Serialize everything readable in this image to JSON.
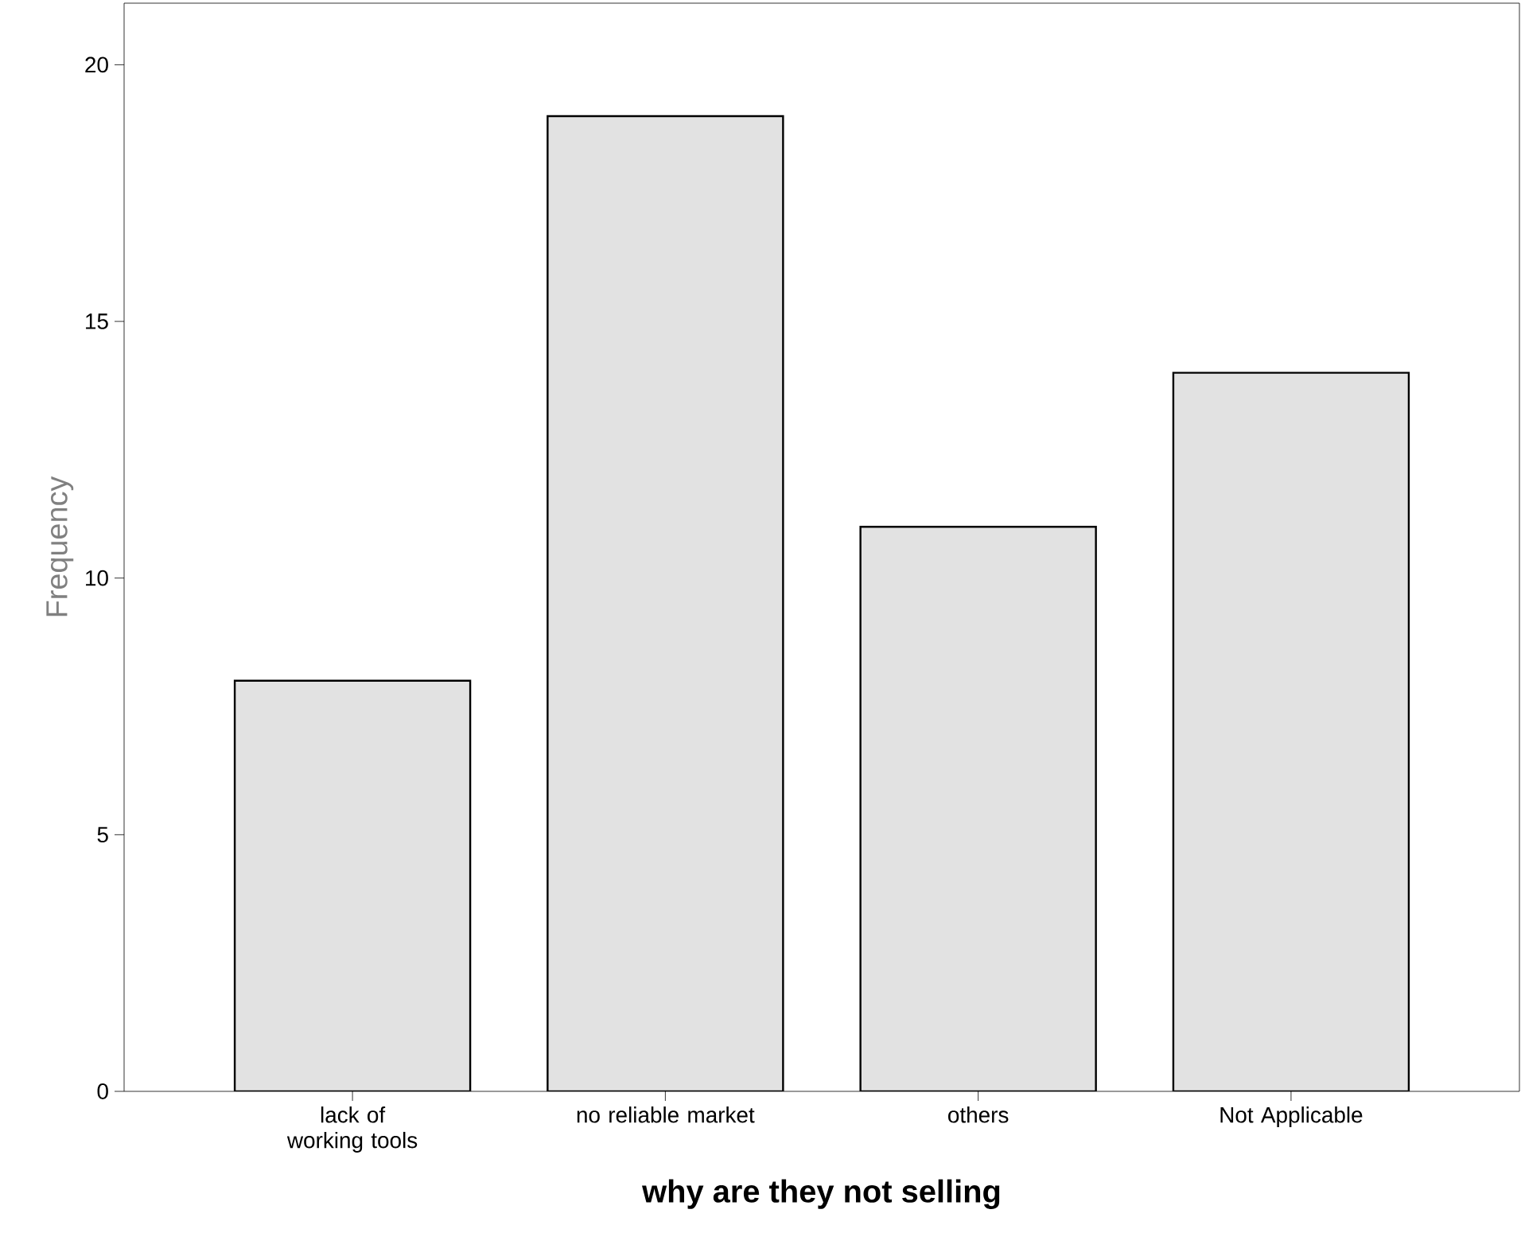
{
  "chart_data": {
    "type": "bar",
    "xlabel": "why are they not selling",
    "ylabel": "Frequency",
    "categories": [
      "lack of working tools",
      "no reliable market",
      "others",
      "Not Applicable"
    ],
    "values": [
      8,
      19,
      11,
      14
    ],
    "color": "#e2e2e2",
    "ylim": [
      0,
      21.2
    ],
    "yticks": [
      0,
      5,
      10,
      15,
      20
    ],
    "grid": false
  }
}
